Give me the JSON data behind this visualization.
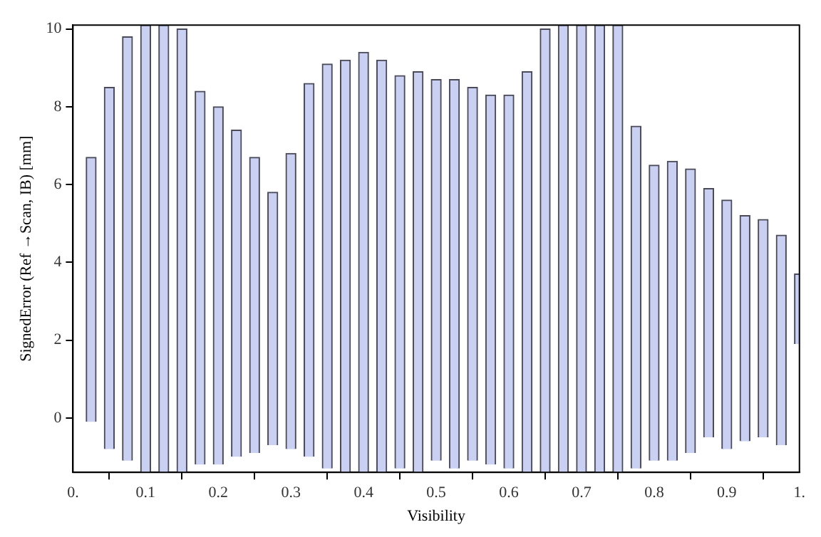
{
  "chart_data": {
    "type": "bar",
    "xlabel": "Visibility",
    "ylabel": "SignedError (Ref →Scan, IB) [mm]",
    "x": [
      0.025,
      0.05,
      0.075,
      0.1,
      0.125,
      0.15,
      0.175,
      0.2,
      0.225,
      0.25,
      0.275,
      0.3,
      0.325,
      0.35,
      0.375,
      0.4,
      0.425,
      0.45,
      0.475,
      0.5,
      0.525,
      0.55,
      0.575,
      0.6,
      0.625,
      0.65,
      0.675,
      0.7,
      0.725,
      0.75,
      0.775,
      0.8,
      0.825,
      0.85,
      0.875,
      0.9,
      0.925,
      0.95,
      0.975,
      1.0
    ],
    "base": [
      -0.1,
      -0.8,
      -1.1,
      -1.4,
      -1.4,
      -1.4,
      -1.2,
      -1.2,
      -1.0,
      -0.9,
      -0.7,
      -0.8,
      -1.0,
      -1.3,
      -1.4,
      -1.4,
      -1.4,
      -1.3,
      -1.4,
      -1.1,
      -1.3,
      -1.1,
      -1.2,
      -1.3,
      -1.4,
      -1.4,
      -1.4,
      -1.4,
      -1.4,
      -1.4,
      -1.3,
      -1.1,
      -1.1,
      -0.9,
      -0.5,
      -0.8,
      -0.6,
      -0.5,
      -0.7,
      1.9
    ],
    "values": [
      6.8,
      9.3,
      10.9,
      11.5,
      11.5,
      11.4,
      9.6,
      9.2,
      8.4,
      7.6,
      6.5,
      7.6,
      9.6,
      10.4,
      10.6,
      10.8,
      10.6,
      10.1,
      10.3,
      9.8,
      10.0,
      9.6,
      9.5,
      9.6,
      10.3,
      11.4,
      11.5,
      11.5,
      11.5,
      11.5,
      8.8,
      7.6,
      7.7,
      7.3,
      6.4,
      6.4,
      5.8,
      5.6,
      5.4,
      1.8
    ],
    "color": "#c9d0f2",
    "xlim": [
      0,
      1
    ],
    "xticks": [
      {
        "value": 0,
        "label": "0."
      },
      {
        "value": 0.1,
        "label": "0.1"
      },
      {
        "value": 0.2,
        "label": "0.2"
      },
      {
        "value": 0.3,
        "label": "0.3"
      },
      {
        "value": 0.4,
        "label": "0.4"
      },
      {
        "value": 0.5,
        "label": "0.5"
      },
      {
        "value": 0.6,
        "label": "0.6"
      },
      {
        "value": 0.7,
        "label": "0.7"
      },
      {
        "value": 0.8,
        "label": "0.8"
      },
      {
        "value": 0.9,
        "label": "0.9"
      },
      {
        "value": 1,
        "label": "1."
      }
    ],
    "ylim": [
      -1.4,
      10.1
    ],
    "yticks": [
      0,
      2,
      4,
      6,
      8,
      10
    ],
    "grid": false,
    "legend": false
  }
}
